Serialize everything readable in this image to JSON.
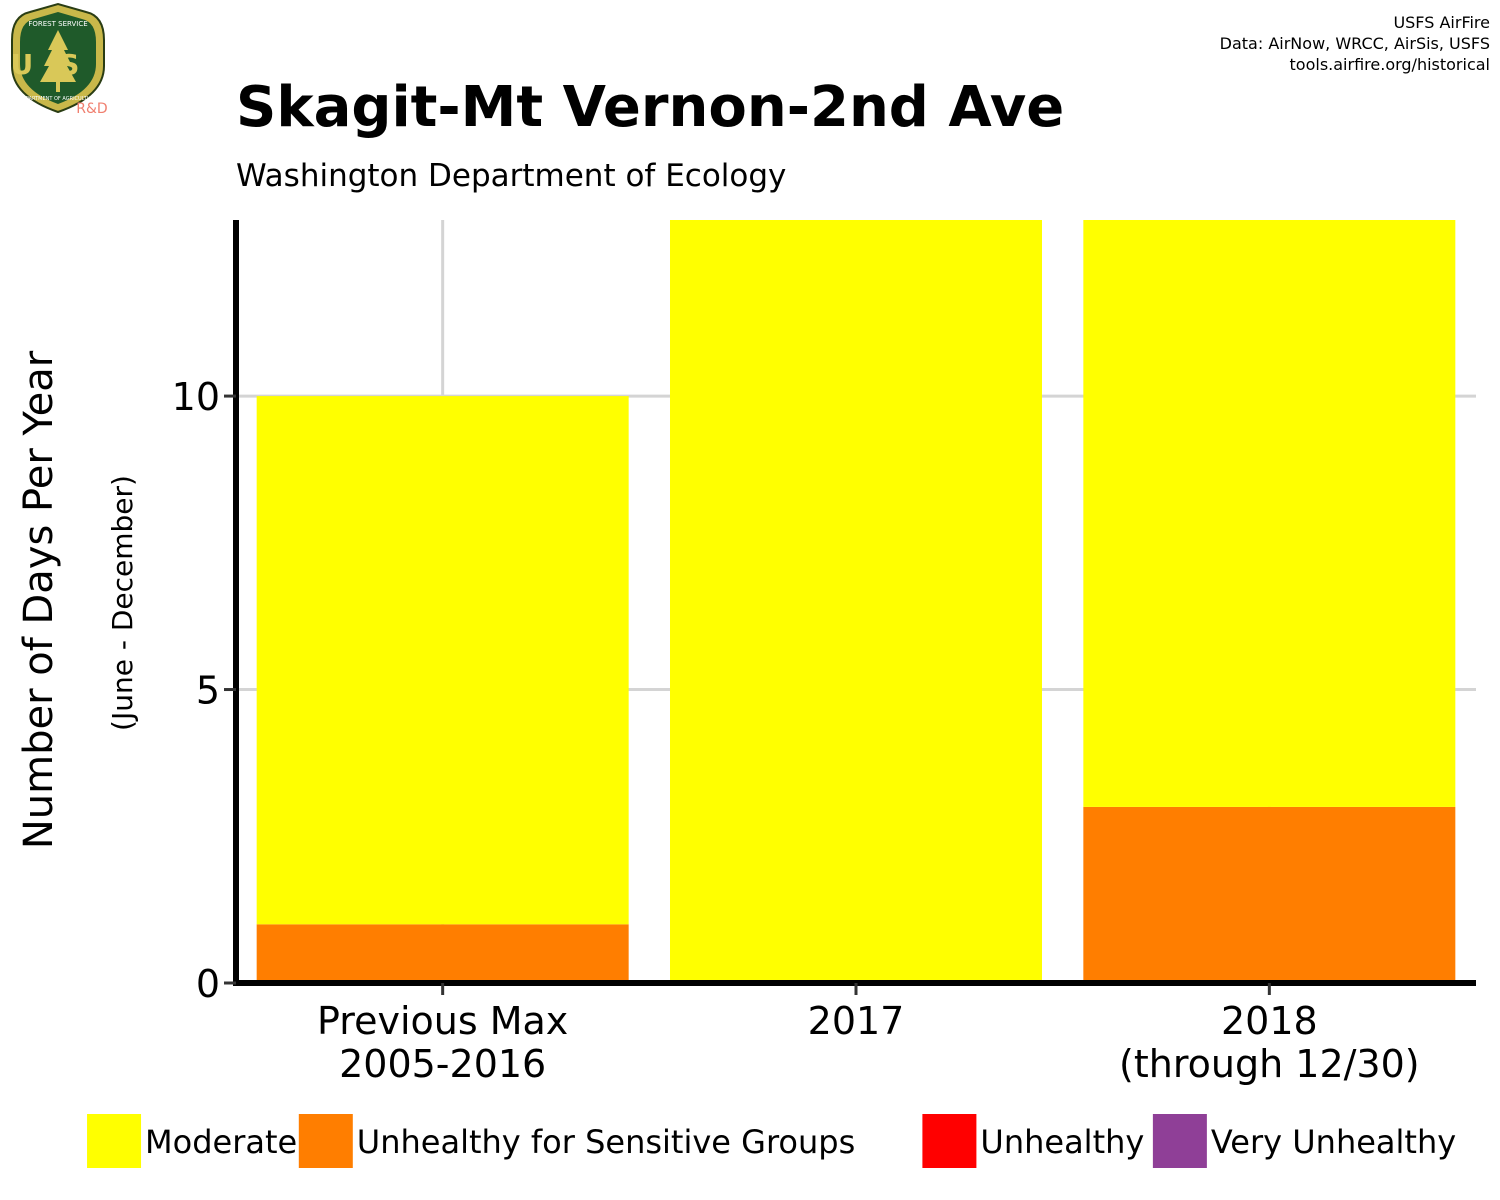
{
  "credits": [
    "USFS AirFire",
    "Data: AirNow, WRCC, AirSis, USFS",
    "tools.airfire.org/historical"
  ],
  "logo": {
    "top": "FOREST SERVICE",
    "letters": "US",
    "bottom": "DEPARTMENT OF AGRICULTURE",
    "tag": "R&D"
  },
  "chart_data": {
    "type": "bar",
    "stacked": true,
    "title": "Skagit-Mt Vernon-2nd Ave",
    "subtitle": "Washington Department of Ecology",
    "ylabel": "Number of Days Per Year",
    "ylabel_sub": "(June - December)",
    "categories": [
      [
        "Previous Max",
        "2005-2016"
      ],
      [
        "2017"
      ],
      [
        "2018",
        "(through 12/30)"
      ]
    ],
    "series": [
      {
        "name": "Unhealthy for Sensitive Groups",
        "color": "#ff7e00",
        "values": [
          1,
          0,
          3
        ]
      },
      {
        "name": "Moderate",
        "color": "#ffff00",
        "values": [
          9,
          13,
          10
        ]
      },
      {
        "name": "Unhealthy",
        "color": "#ff0000",
        "values": [
          0,
          0,
          0
        ]
      },
      {
        "name": "Very Unhealthy",
        "color": "#8f3f97",
        "values": [
          0,
          0,
          0
        ]
      }
    ],
    "yticks": [
      0,
      5,
      10
    ],
    "ylim": [
      0,
      13
    ],
    "grid": true,
    "legend": {
      "position": "bottom",
      "order": [
        "Moderate",
        "Unhealthy for Sensitive Groups",
        "Unhealthy",
        "Very Unhealthy"
      ]
    }
  }
}
